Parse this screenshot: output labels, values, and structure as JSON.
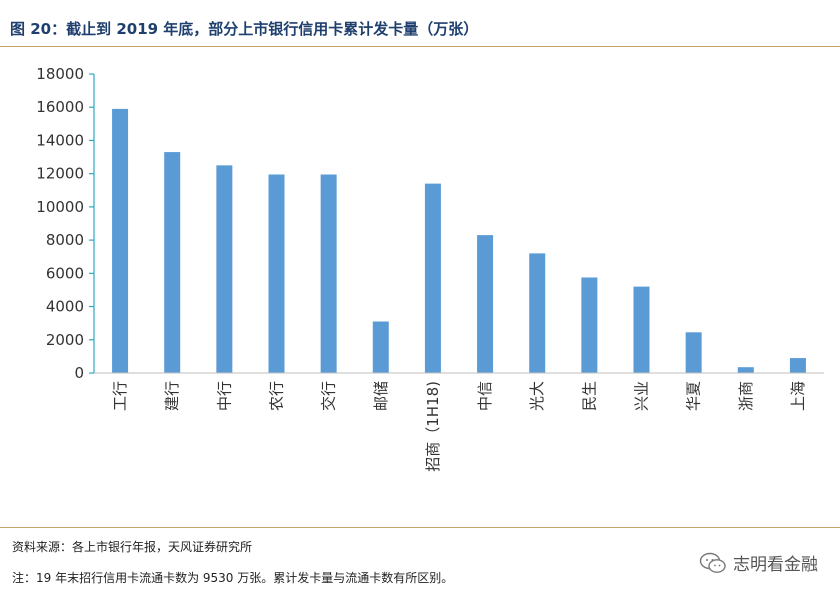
{
  "header": {
    "title": "图 20：截止到 2019 年底，部分上市银行信用卡累计发卡量（万张）"
  },
  "footer": {
    "source": "资料来源：各上市银行年报，天风证券研究所",
    "note": "注：19 年末招行信用卡流通卡数为 9530 万张。累计发卡量与流通卡数有所区别。",
    "watermark": "志明看金融"
  },
  "colors": {
    "bar": "#5b9bd5",
    "axis": "#2aa9c4",
    "rule": "#c8a56a",
    "title": "#1f3f6e"
  },
  "chart_data": {
    "type": "bar",
    "categories": [
      "工行",
      "建行",
      "中行",
      "农行",
      "交行",
      "邮储",
      "招商（1H18)",
      "中信",
      "光大",
      "民生",
      "兴业",
      "华夏",
      "浙商",
      "上海"
    ],
    "values": [
      15900,
      13300,
      12500,
      11950,
      11950,
      3100,
      11400,
      8300,
      7200,
      5750,
      5200,
      2450,
      350,
      900
    ],
    "yticks": [
      0,
      2000,
      4000,
      6000,
      8000,
      10000,
      12000,
      14000,
      16000,
      18000
    ],
    "ylim": [
      0,
      18000
    ],
    "grid": false,
    "legend": "none"
  }
}
